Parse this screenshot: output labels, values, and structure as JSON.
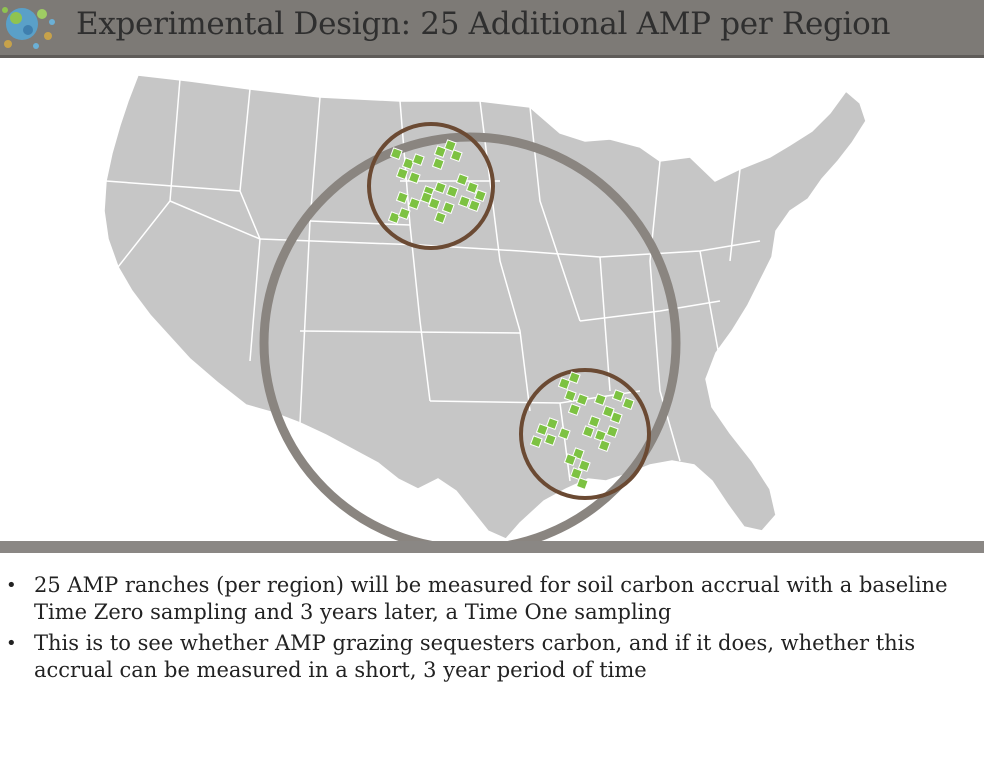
{
  "slide": {
    "title": "Experimental  Design: 25 Additional AMP per Region"
  },
  "bullets": [
    {
      "text": "25 AMP ranches (per region) will be measured for soil carbon accrual with a baseline Time Zero sampling and 3 years later, a Time One sampling"
    },
    {
      "text": "This is to see whether AMP grazing sequesters carbon, and if it does, whether this accrual can be measured in a short, 3 year period of time"
    }
  ],
  "colors": {
    "title_bar": "#7d7a76",
    "map_fill": "#c6c6c6",
    "state_lines": "#ffffff",
    "big_circle": "#8a8580",
    "region_circle": "#6b4a33",
    "ranch_marker": "#7dc242"
  },
  "icons": {
    "logo": "globe-logo-icon",
    "bullet": "bullet-dot"
  }
}
